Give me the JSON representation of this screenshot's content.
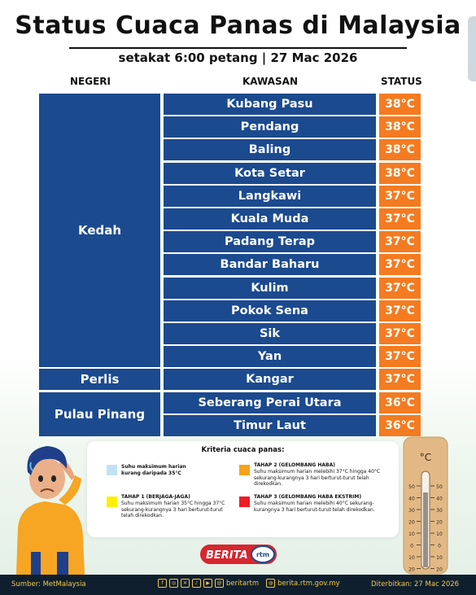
{
  "title": "Status Cuaca Panas di Malaysia",
  "subtitle": "setakat 6:00 petang | 27 Mac 2026",
  "columns": {
    "state": "NEGERI",
    "area": "KAWASAN",
    "status": "STATUS"
  },
  "colors": {
    "navy": "#1b4a8f",
    "orange": "#f47b20",
    "footer": "#0f1f2d",
    "footer_text": "#f2c94c"
  },
  "states": [
    {
      "name": "Kedah",
      "rows": 12
    },
    {
      "name": "Perlis",
      "rows": 1
    },
    {
      "name": "Pulau Pinang",
      "rows": 2
    }
  ],
  "areas": [
    {
      "name": "Kubang Pasu",
      "status": "38°C"
    },
    {
      "name": "Pendang",
      "status": "38°C"
    },
    {
      "name": "Baling",
      "status": "38°C"
    },
    {
      "name": "Kota Setar",
      "status": "38°C"
    },
    {
      "name": "Langkawi",
      "status": "37°C"
    },
    {
      "name": "Kuala Muda",
      "status": "37°C"
    },
    {
      "name": "Padang Terap",
      "status": "37°C"
    },
    {
      "name": "Bandar Baharu",
      "status": "37°C"
    },
    {
      "name": "Kulim",
      "status": "37°C"
    },
    {
      "name": "Pokok Sena",
      "status": "37°C"
    },
    {
      "name": "Sik",
      "status": "37°C"
    },
    {
      "name": "Yan",
      "status": "37°C"
    },
    {
      "name": "Kangar",
      "status": "37°C"
    },
    {
      "name": "Seberang Perai Utara",
      "status": "36°C"
    },
    {
      "name": "Timur Laut",
      "status": "36°C"
    }
  ],
  "criteria": {
    "title": "Kriteria cuaca panas:",
    "normal": {
      "text": "Suhu maksimum harian kurang daripada 35°C",
      "color": "#bfe3f5"
    },
    "stage1": {
      "label": "TAHAP 1 (BERJAGA-JAGA)",
      "text": "Suhu maksimum harian 35°C hingga 37°C sekurang-kurangnya 3 hari berturut-turut telah direkodkan.",
      "color": "#ffef00"
    },
    "stage2": {
      "label": "TAHAP 2 (GELOMBANG HABA)",
      "text": "Suhu maksimum harian melebihi 37°C hingga 40°C sekurang-kurangnya 3 hari berturut-turut telah direkodkan.",
      "color": "#f7a21b"
    },
    "stage3": {
      "label": "TAHAP 3 (GELOMBANG HABA EKSTRIM)",
      "text": "Suhu maksimum harian melebihi 40°C sekurang-kurangnya 3 hari berturut-turut telah direkodkan.",
      "color": "#ee1c25"
    }
  },
  "thermometer": {
    "unit": "°C",
    "ticks": [
      "50",
      "40",
      "30",
      "20",
      "10",
      "0",
      "10",
      "20"
    ]
  },
  "logo": {
    "text": "BERITA",
    "badge": "rtm"
  },
  "footer": {
    "source": "Sumber: MetMalaysia",
    "handle": "beritartm",
    "website": "berita.rtm.gov.my",
    "published": "Diterbitkan: 27 Mac 2026"
  }
}
